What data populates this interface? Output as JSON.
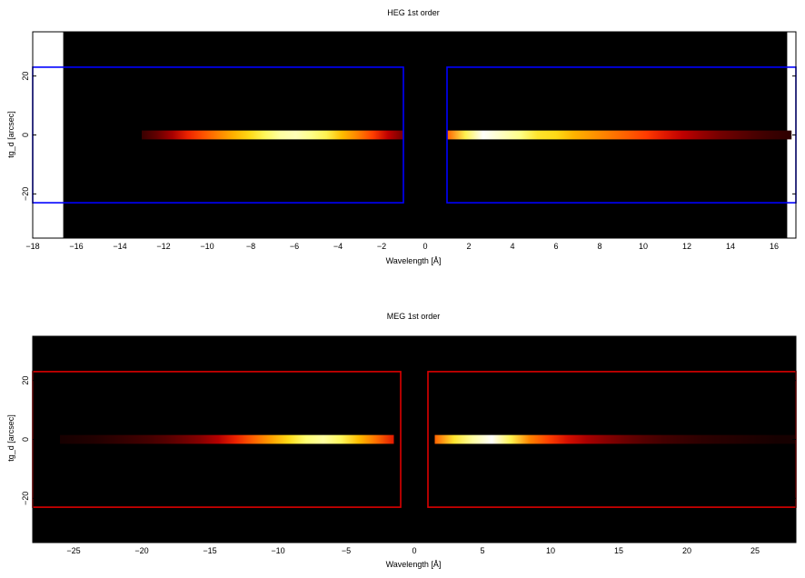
{
  "chart_data": [
    {
      "type": "heatmap",
      "title": "HEG 1st order",
      "xlabel": "Wavelength [Å]",
      "ylabel": "tg_d [arcsec]",
      "xlim": [
        -18,
        17
      ],
      "ylim": [
        -35,
        35
      ],
      "xticks": [
        -18,
        -16,
        -14,
        -12,
        -10,
        -8,
        -6,
        -4,
        -2,
        0,
        2,
        4,
        6,
        8,
        10,
        12,
        14,
        16
      ],
      "xtick_labels": [
        "−18",
        "−16",
        "−14",
        "−12",
        "−10",
        "−8",
        "−6",
        "−4",
        "−2",
        "0",
        "2",
        "4",
        "6",
        "8",
        "10",
        "12",
        "14",
        "16"
      ],
      "yticks": [
        -20,
        0,
        20
      ],
      "ytick_labels": [
        "−20",
        "0",
        "20"
      ],
      "data_extent_x": [
        -16.6,
        16.6
      ],
      "box_color": "#0000ff",
      "regions": [
        {
          "x": [
            -18,
            -1
          ],
          "y": [
            -23,
            23
          ]
        },
        {
          "x": [
            1,
            17
          ],
          "y": [
            -23,
            23
          ]
        }
      ],
      "streaks": [
        {
          "x": [
            -13.0,
            -1.0
          ],
          "y": [
            -1.5,
            1.5
          ],
          "profile": [
            0.1,
            0.18,
            0.3,
            0.42,
            0.52,
            0.62,
            0.72,
            0.8,
            0.86,
            0.92,
            0.94,
            0.9,
            0.85,
            0.74,
            0.62,
            0.48,
            0.34,
            0.2
          ]
        },
        {
          "x": [
            1.0,
            16.8
          ],
          "y": [
            -1.5,
            1.5
          ],
          "profile": [
            0.55,
            0.85,
            1.0,
            0.95,
            0.9,
            0.82,
            0.8,
            0.72,
            0.66,
            0.6,
            0.54,
            0.47,
            0.4,
            0.34,
            0.27,
            0.21,
            0.17,
            0.13,
            0.1,
            0.08
          ]
        }
      ]
    },
    {
      "type": "heatmap",
      "title": "MEG 1st order",
      "xlabel": "Wavelength [Å]",
      "ylabel": "tg_d [arcsec]",
      "xlim": [
        -28,
        28
      ],
      "ylim": [
        -35,
        35
      ],
      "xticks": [
        -25,
        -20,
        -15,
        -10,
        -5,
        0,
        5,
        10,
        15,
        20,
        25
      ],
      "xtick_labels": [
        "−25",
        "−20",
        "−15",
        "−10",
        "−5",
        "0",
        "5",
        "10",
        "15",
        "20",
        "25"
      ],
      "yticks": [
        -20,
        0,
        20
      ],
      "ytick_labels": [
        "−20",
        "0",
        "20"
      ],
      "data_extent_x": [
        -28,
        28
      ],
      "box_color": "#dd0000",
      "regions": [
        {
          "x": [
            -28,
            -1
          ],
          "y": [
            -23,
            23
          ]
        },
        {
          "x": [
            1,
            28
          ],
          "y": [
            -23,
            23
          ]
        }
      ],
      "streaks": [
        {
          "x": [
            -26.0,
            -1.5
          ],
          "y": [
            -1.5,
            1.5
          ],
          "profile": [
            0.04,
            0.05,
            0.06,
            0.08,
            0.1,
            0.12,
            0.15,
            0.19,
            0.24,
            0.32,
            0.42,
            0.55,
            0.68,
            0.8,
            0.88,
            0.92,
            0.86,
            0.74,
            0.58,
            0.4
          ]
        },
        {
          "x": [
            1.5,
            28.0
          ],
          "y": [
            -1.5,
            1.5
          ],
          "profile": [
            0.55,
            0.82,
            0.92,
            1.0,
            0.85,
            0.62,
            0.48,
            0.38,
            0.3,
            0.24,
            0.19,
            0.15,
            0.12,
            0.1,
            0.08,
            0.07,
            0.06,
            0.05,
            0.04,
            0.04
          ]
        }
      ]
    }
  ]
}
